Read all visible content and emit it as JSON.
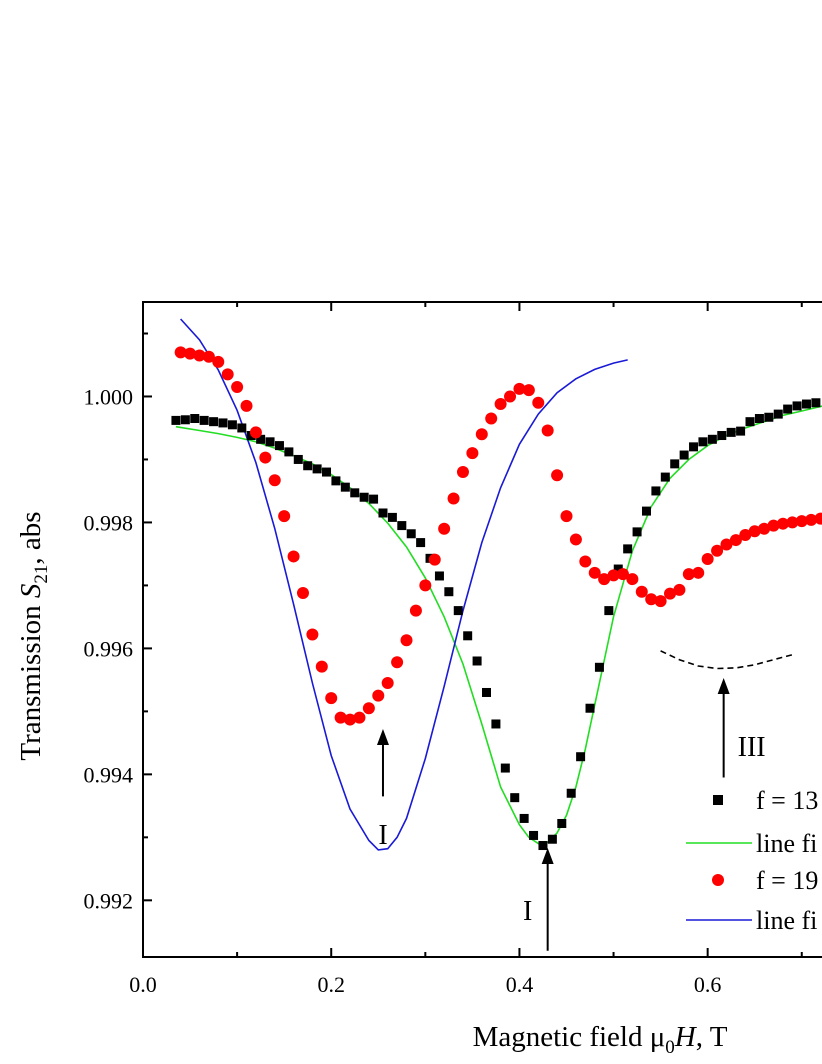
{
  "chart_data": {
    "type": "scatter",
    "xlabel": "Magnetic field μ0H, T",
    "ylabel": "Transmission S21, abs",
    "xlim": [
      0.0,
      0.73
    ],
    "ylim": [
      0.9911,
      1.0015
    ],
    "x_ticks": [
      "0.0",
      "0.2",
      "0.4",
      "0.6"
    ],
    "y_ticks": [
      "0.992",
      "0.994",
      "0.996",
      "0.998",
      "1.000"
    ],
    "grid": false,
    "legend_placement": "bottom-right",
    "series": [
      {
        "name": "f = 13…",
        "kind": "points",
        "marker": "square",
        "color": "#000000",
        "x": [
          0.035,
          0.045,
          0.055,
          0.065,
          0.075,
          0.085,
          0.095,
          0.105,
          0.115,
          0.125,
          0.135,
          0.145,
          0.155,
          0.165,
          0.175,
          0.185,
          0.195,
          0.205,
          0.215,
          0.225,
          0.235,
          0.245,
          0.255,
          0.265,
          0.275,
          0.285,
          0.295,
          0.305,
          0.315,
          0.325,
          0.335,
          0.345,
          0.355,
          0.365,
          0.375,
          0.385,
          0.395,
          0.405,
          0.415,
          0.425,
          0.435,
          0.445,
          0.455,
          0.465,
          0.475,
          0.485,
          0.495,
          0.505,
          0.515,
          0.525,
          0.535,
          0.545,
          0.555,
          0.565,
          0.575,
          0.585,
          0.595,
          0.605,
          0.615,
          0.625,
          0.635,
          0.645,
          0.655,
          0.665,
          0.675,
          0.685,
          0.695,
          0.705,
          0.715
        ],
        "y": [
          0.99962,
          0.99963,
          0.99965,
          0.99962,
          0.9996,
          0.99958,
          0.99955,
          0.9995,
          0.99938,
          0.99932,
          0.99928,
          0.99922,
          0.99912,
          0.999,
          0.9989,
          0.99885,
          0.9988,
          0.99866,
          0.99856,
          0.99847,
          0.9984,
          0.99837,
          0.99815,
          0.99808,
          0.99795,
          0.99782,
          0.99768,
          0.99743,
          0.99715,
          0.9969,
          0.9966,
          0.9962,
          0.9958,
          0.9953,
          0.9948,
          0.9941,
          0.99363,
          0.9933,
          0.99303,
          0.99287,
          0.99297,
          0.99322,
          0.9937,
          0.99428,
          0.99505,
          0.9957,
          0.9966,
          0.99726,
          0.99758,
          0.99785,
          0.99818,
          0.9985,
          0.99872,
          0.99893,
          0.99907,
          0.9992,
          0.99928,
          0.99932,
          0.99938,
          0.99943,
          0.99945,
          0.9996,
          0.99965,
          0.99967,
          0.99972,
          0.9998,
          0.99985,
          0.99988,
          0.9999
        ]
      },
      {
        "name": "line fi…",
        "kind": "line",
        "color": "#22dd22",
        "x": [
          0.035,
          0.06,
          0.08,
          0.1,
          0.12,
          0.14,
          0.16,
          0.18,
          0.2,
          0.22,
          0.24,
          0.26,
          0.28,
          0.3,
          0.32,
          0.34,
          0.36,
          0.38,
          0.4,
          0.41,
          0.42,
          0.43,
          0.44,
          0.45,
          0.46,
          0.47,
          0.48,
          0.49,
          0.5,
          0.52,
          0.54,
          0.56,
          0.58,
          0.6,
          0.62,
          0.64,
          0.66,
          0.68,
          0.7,
          0.72,
          0.73
        ],
        "y": [
          0.99952,
          0.99946,
          0.99941,
          0.99935,
          0.99928,
          0.99918,
          0.99906,
          0.99893,
          0.99876,
          0.99855,
          0.9983,
          0.99799,
          0.99761,
          0.99712,
          0.9965,
          0.99575,
          0.9948,
          0.9938,
          0.9932,
          0.993,
          0.9929,
          0.99292,
          0.99307,
          0.99335,
          0.9938,
          0.9944,
          0.9951,
          0.9958,
          0.9965,
          0.99755,
          0.99825,
          0.9987,
          0.999,
          0.99922,
          0.99938,
          0.9995,
          0.9996,
          0.9997,
          0.99977,
          0.99984,
          0.99988
        ]
      },
      {
        "name": "f = 19…",
        "kind": "points",
        "marker": "circle",
        "color": "#ff0000",
        "x": [
          0.04,
          0.05,
          0.06,
          0.07,
          0.08,
          0.09,
          0.1,
          0.11,
          0.12,
          0.13,
          0.14,
          0.15,
          0.16,
          0.17,
          0.18,
          0.19,
          0.2,
          0.21,
          0.22,
          0.23,
          0.24,
          0.25,
          0.26,
          0.27,
          0.28,
          0.29,
          0.3,
          0.31,
          0.32,
          0.33,
          0.34,
          0.35,
          0.36,
          0.37,
          0.38,
          0.39,
          0.4,
          0.41,
          0.42,
          0.43,
          0.44,
          0.45,
          0.46,
          0.47,
          0.48,
          0.49,
          0.5,
          0.51,
          0.52,
          0.53,
          0.54,
          0.55,
          0.56,
          0.57,
          0.58,
          0.59,
          0.6,
          0.61,
          0.62,
          0.63,
          0.64,
          0.65,
          0.66,
          0.67,
          0.68,
          0.69,
          0.7,
          0.71,
          0.72,
          0.73
        ],
        "y": [
          1.0007,
          1.00068,
          1.00065,
          1.00063,
          1.00055,
          1.00035,
          1.00015,
          0.99985,
          0.99943,
          0.99903,
          0.99867,
          0.9981,
          0.99746,
          0.99688,
          0.99622,
          0.99571,
          0.99521,
          0.9949,
          0.99487,
          0.9949,
          0.99505,
          0.99525,
          0.99545,
          0.99578,
          0.99613,
          0.9966,
          0.997,
          0.99741,
          0.9979,
          0.99838,
          0.9988,
          0.9991,
          0.9994,
          0.99965,
          0.99988,
          1.0,
          1.00012,
          1.0001,
          0.9999,
          0.99946,
          0.99875,
          0.9981,
          0.99773,
          0.99738,
          0.9972,
          0.9971,
          0.99716,
          0.99718,
          0.9971,
          0.9969,
          0.99678,
          0.99675,
          0.99687,
          0.99693,
          0.99718,
          0.9972,
          0.99742,
          0.99755,
          0.99765,
          0.99772,
          0.9978,
          0.99786,
          0.9979,
          0.99795,
          0.99798,
          0.998,
          0.99802,
          0.99804,
          0.99806,
          0.99808
        ]
      },
      {
        "name": "line fi…",
        "kind": "line",
        "color": "#1a1ad6",
        "x": [
          0.04,
          0.06,
          0.08,
          0.1,
          0.12,
          0.14,
          0.16,
          0.18,
          0.2,
          0.22,
          0.24,
          0.25,
          0.26,
          0.27,
          0.28,
          0.3,
          0.32,
          0.34,
          0.36,
          0.38,
          0.4,
          0.42,
          0.44,
          0.46,
          0.48,
          0.5,
          0.515
        ],
        "y": [
          1.00123,
          1.0009,
          1.00042,
          0.99978,
          0.99895,
          0.9979,
          0.9967,
          0.99545,
          0.9943,
          0.99345,
          0.99295,
          0.9928,
          0.99282,
          0.993,
          0.9933,
          0.99425,
          0.9954,
          0.9966,
          0.99768,
          0.99855,
          0.99924,
          0.99972,
          1.00006,
          1.00028,
          1.00043,
          1.00053,
          1.00058
        ]
      },
      {
        "name": "",
        "kind": "dashed-curve",
        "color": "#000000",
        "x": [
          0.55,
          0.57,
          0.59,
          0.61,
          0.63,
          0.65,
          0.67,
          0.69
        ],
        "y": [
          0.99596,
          0.99582,
          0.99572,
          0.99568,
          0.99569,
          0.99574,
          0.99582,
          0.9959
        ]
      }
    ],
    "annotations": [
      {
        "text": "I",
        "arrow_x": 0.255,
        "arrow_from_y": 0.99365,
        "arrow_to_y": 0.99472,
        "label_y": 0.99305
      },
      {
        "text": "I",
        "arrow_x": 0.43,
        "arrow_from_y": 0.9912,
        "arrow_to_y": 0.99283,
        "label_y": 0.99185
      },
      {
        "text": "III",
        "arrow_x": 0.617,
        "arrow_from_y": 0.99395,
        "arrow_to_y": 0.99553,
        "label_y": 0.99445
      }
    ],
    "legend": [
      {
        "label": "f = 13",
        "marker": "square",
        "color": "#000000"
      },
      {
        "label": "line fi",
        "marker": "line",
        "color": "#22dd22"
      },
      {
        "label": "f = 19",
        "marker": "circle",
        "color": "#ff0000"
      },
      {
        "label": "line fi",
        "marker": "line",
        "color": "#1a1ad6"
      }
    ]
  }
}
